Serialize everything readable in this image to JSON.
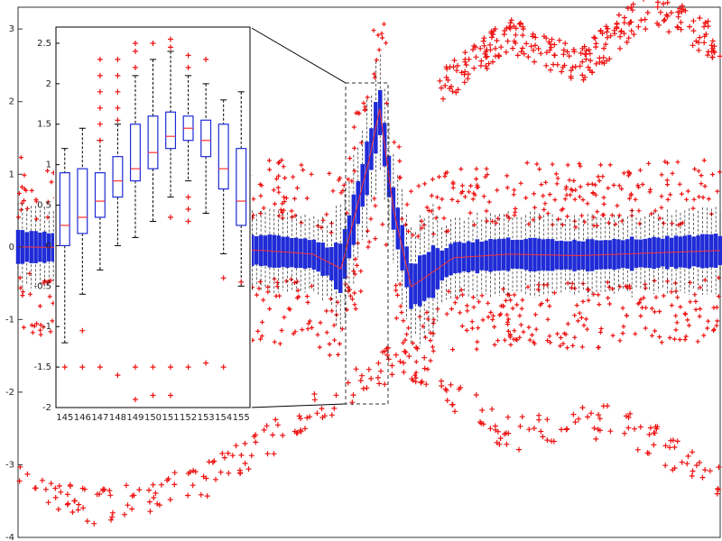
{
  "chart_data": [
    {
      "type": "box",
      "role": "main-panel",
      "ylim": [
        -4,
        3.3
      ],
      "yticks": [
        "3",
        "2",
        "1",
        "0",
        "-1",
        "-2",
        "-3",
        "-4"
      ],
      "grid": false,
      "colors": {
        "box": "#1f2bd6",
        "whisker": "#000000",
        "median": "#ff3333",
        "outlier": "#ee1111"
      },
      "median_profile": [
        {
          "x": 0.0,
          "y": 0.0
        },
        {
          "x": 0.35,
          "y": -0.05
        },
        {
          "x": 0.42,
          "y": -0.1
        },
        {
          "x": 0.46,
          "y": -0.3
        },
        {
          "x": 0.5,
          "y": 1.2
        },
        {
          "x": 0.515,
          "y": 1.9
        },
        {
          "x": 0.535,
          "y": 0.5
        },
        {
          "x": 0.56,
          "y": -0.55
        },
        {
          "x": 0.62,
          "y": -0.15
        },
        {
          "x": 0.7,
          "y": -0.1
        },
        {
          "x": 0.8,
          "y": -0.12
        },
        {
          "x": 1.0,
          "y": -0.05
        }
      ],
      "upper_outlier_trace": [
        {
          "x": 0.6,
          "y": 2.2
        },
        {
          "x": 0.7,
          "y": 2.9
        },
        {
          "x": 0.8,
          "y": 2.5
        },
        {
          "x": 0.9,
          "y": 3.3
        },
        {
          "x": 1.0,
          "y": 2.8
        }
      ],
      "lower_outlier_trace": [
        {
          "x": 0.0,
          "y": -3.1
        },
        {
          "x": 0.1,
          "y": -3.6
        },
        {
          "x": 0.25,
          "y": -3.3
        },
        {
          "x": 0.4,
          "y": -2.4
        },
        {
          "x": 0.55,
          "y": -1.5
        },
        {
          "x": 0.7,
          "y": -2.6
        },
        {
          "x": 0.85,
          "y": -2.4
        },
        {
          "x": 1.0,
          "y": -3.2
        }
      ]
    },
    {
      "type": "box",
      "role": "zoom-inset",
      "categories": [
        "145",
        "146",
        "147",
        "148",
        "149",
        "150",
        "151",
        "152",
        "153",
        "154",
        "155"
      ],
      "ylim": [
        -2,
        2.7
      ],
      "yticks": [
        "2.5",
        "2",
        "1.5",
        "1",
        "0.5",
        "0",
        "-0.5",
        "-1",
        "-1.5",
        "-2"
      ],
      "boxes": [
        {
          "q1": 0.0,
          "med": 0.25,
          "q3": 0.9,
          "wlo": -1.2,
          "whi": 1.2
        },
        {
          "q1": 0.15,
          "med": 0.35,
          "q3": 0.95,
          "wlo": -0.6,
          "whi": 1.45
        },
        {
          "q1": 0.35,
          "med": 0.55,
          "q3": 0.9,
          "wlo": -0.3,
          "whi": 1.3
        },
        {
          "q1": 0.6,
          "med": 0.8,
          "q3": 1.1,
          "wlo": 0.0,
          "whi": 1.5
        },
        {
          "q1": 0.8,
          "med": 0.95,
          "q3": 1.5,
          "wlo": 0.1,
          "whi": 2.1
        },
        {
          "q1": 0.95,
          "med": 1.15,
          "q3": 1.6,
          "wlo": 0.3,
          "whi": 2.3
        },
        {
          "q1": 1.2,
          "med": 1.35,
          "q3": 1.65,
          "wlo": 0.6,
          "whi": 2.4
        },
        {
          "q1": 1.3,
          "med": 1.45,
          "q3": 1.6,
          "wlo": 0.8,
          "whi": 2.1
        },
        {
          "q1": 1.1,
          "med": 1.3,
          "q3": 1.55,
          "wlo": 0.4,
          "whi": 2.0
        },
        {
          "q1": 0.7,
          "med": 0.95,
          "q3": 1.5,
          "wlo": -0.1,
          "whi": 1.8
        },
        {
          "q1": 0.25,
          "med": 0.55,
          "q3": 1.2,
          "wlo": -0.5,
          "whi": 1.9
        }
      ],
      "outliers": [
        [
          -1.5
        ],
        [
          -1.05,
          -1.5
        ],
        [
          -1.5,
          1.3,
          1.5,
          1.7,
          1.9,
          2.1,
          2.3
        ],
        [
          -1.6,
          1.55,
          1.7,
          1.9,
          2.1,
          2.3
        ],
        [
          -1.9,
          -1.5,
          2.2,
          2.4,
          2.5
        ],
        [
          -1.85,
          -1.5,
          2.5
        ],
        [
          -1.85,
          -1.5,
          0.35,
          2.45,
          2.55
        ],
        [
          -1.5,
          0.3,
          0.45,
          0.6,
          2.2,
          2.35
        ],
        [
          -1.45,
          2.3
        ],
        [
          -0.4,
          -1.5
        ],
        [
          -0.45
        ]
      ]
    }
  ]
}
